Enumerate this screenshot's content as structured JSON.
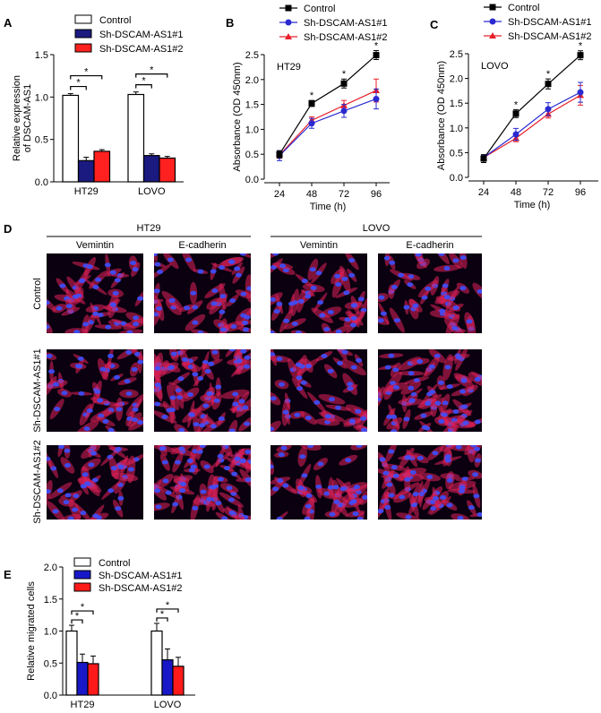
{
  "chart_data": [
    {
      "panel": "A",
      "type": "bar",
      "categories": [
        "HT29",
        "LOVO"
      ],
      "ylabel": [
        "Relative expression",
        "of DSCAM-AS1"
      ],
      "ylim": [
        0,
        1.5
      ],
      "yticks": [
        "0.0",
        "0.5",
        "1.0",
        "1.5"
      ],
      "legend_position": "top",
      "series": [
        {
          "name": "Control",
          "color": "#ffffff",
          "values": [
            1.02,
            1.03
          ],
          "errors": [
            0.02,
            0.03
          ]
        },
        {
          "name": "Sh-DSCAM-AS1#1",
          "color": "#1a1a80",
          "values": [
            0.25,
            0.31
          ],
          "errors": [
            0.04,
            0.02
          ]
        },
        {
          "name": "Sh-DSCAM-AS1#2",
          "color": "#ff2020",
          "values": [
            0.36,
            0.28
          ],
          "errors": [
            0.02,
            0.02
          ]
        }
      ],
      "significance": "*"
    },
    {
      "panel": "B",
      "type": "line",
      "annotation": "HT29",
      "x": [
        24,
        48,
        72,
        96
      ],
      "xlabel": "Time (h)",
      "ylabel": "Absorbance (OD 450nm)",
      "ylim": [
        0,
        2.5
      ],
      "yticks": [
        "0.0",
        "0.5",
        "1.0",
        "1.5",
        "2.0",
        "2.5"
      ],
      "legend_position": "top",
      "series": [
        {
          "name": "Control",
          "color": "#000000",
          "marker": "square",
          "values": [
            0.5,
            1.52,
            1.92,
            2.49
          ],
          "errors": [
            0.07,
            0.06,
            0.09,
            0.09
          ]
        },
        {
          "name": "Sh-DSCAM-AS1#1",
          "color": "#2a2ad0",
          "marker": "circle",
          "values": [
            0.47,
            1.12,
            1.37,
            1.61
          ],
          "errors": [
            0.1,
            0.1,
            0.13,
            0.2
          ]
        },
        {
          "name": "Sh-DSCAM-AS1#2",
          "color": "#e8202a",
          "marker": "triangle",
          "values": [
            0.48,
            1.18,
            1.48,
            1.78
          ],
          "errors": [
            0.06,
            0.07,
            0.1,
            0.23
          ]
        }
      ],
      "significance_at": [
        48,
        72,
        96
      ]
    },
    {
      "panel": "C",
      "type": "line",
      "annotation": "LOVO",
      "x": [
        24,
        48,
        72,
        96
      ],
      "xlabel": "Time (h)",
      "ylabel": "Absorbance (OD 450nm)",
      "ylim": [
        0,
        2.5
      ],
      "yticks": [
        "0.0",
        "0.5",
        "1.0",
        "1.5",
        "2.0",
        "2.5"
      ],
      "legend_position": "top",
      "series": [
        {
          "name": "Control",
          "color": "#000000",
          "marker": "square",
          "values": [
            0.38,
            1.29,
            1.89,
            2.47
          ],
          "errors": [
            0.08,
            0.08,
            0.1,
            0.09
          ]
        },
        {
          "name": "Sh-DSCAM-AS1#1",
          "color": "#2a2ad0",
          "marker": "circle",
          "values": [
            0.4,
            0.87,
            1.38,
            1.72
          ],
          "errors": [
            0.05,
            0.12,
            0.13,
            0.2
          ]
        },
        {
          "name": "Sh-DSCAM-AS1#2",
          "color": "#e8202a",
          "marker": "triangle",
          "values": [
            0.4,
            0.79,
            1.28,
            1.66
          ],
          "errors": [
            0.05,
            0.07,
            0.08,
            0.2
          ]
        }
      ],
      "significance_at": [
        48,
        72,
        96
      ]
    },
    {
      "panel": "E",
      "type": "bar",
      "categories": [
        "HT29",
        "LOVO"
      ],
      "ylabel": [
        "Relative migrated cells"
      ],
      "ylim": [
        0,
        2.0
      ],
      "yticks": [
        "0.0",
        "0.5",
        "1.0",
        "1.5",
        "2.0"
      ],
      "legend_position": "top",
      "series": [
        {
          "name": "Control",
          "color": "#ffffff",
          "values": [
            1.0,
            1.0
          ],
          "errors": [
            0.09,
            0.12
          ]
        },
        {
          "name": "Sh-DSCAM-AS1#1",
          "color": "#1818c8",
          "values": [
            0.51,
            0.55
          ],
          "errors": [
            0.13,
            0.17
          ]
        },
        {
          "name": "Sh-DSCAM-AS1#2",
          "color": "#ff1a1a",
          "values": [
            0.49,
            0.45
          ],
          "errors": [
            0.12,
            0.14
          ]
        }
      ],
      "significance": "*"
    }
  ],
  "panel_d": {
    "label": "D",
    "cell_lines": [
      "HT29",
      "LOVO"
    ],
    "stains": [
      "Vemintin",
      "E-cadherin"
    ],
    "rows": [
      "Control",
      "Sh-DSCAM-AS1#1",
      "Sh-DSCAM-AS1#2"
    ],
    "colors": {
      "nucleus": "#3a50ff",
      "cytoplasm": "#e0205a",
      "background": "#0a0010"
    }
  }
}
